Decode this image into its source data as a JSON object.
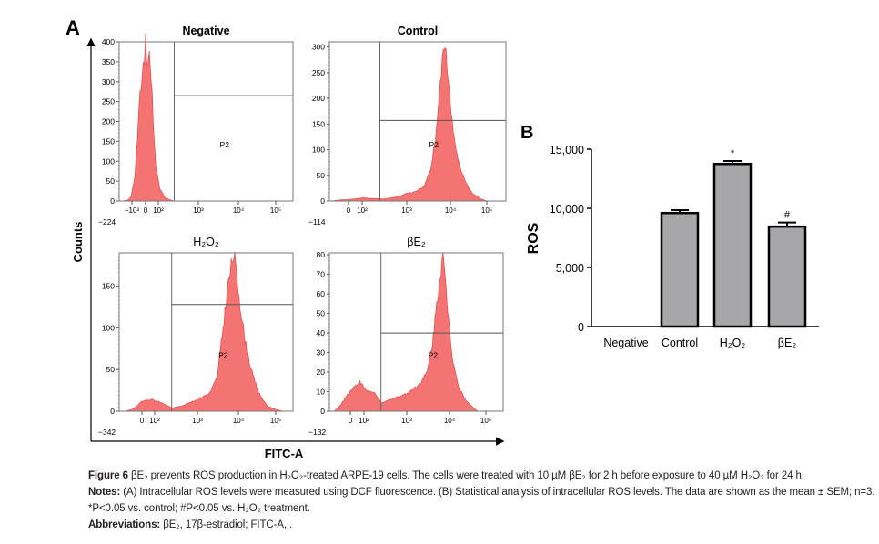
{
  "panel_a": {
    "label": "A",
    "y_axis_label": "Counts",
    "x_axis_label": "FITC-A",
    "gate_label": "P2"
  },
  "panel_b": {
    "label": "B"
  },
  "chart_data": [
    {
      "type": "area",
      "title": "Negative",
      "x_scale": "biexponential",
      "x_min_label": "−224",
      "x_ticks": [
        "−10²",
        "0",
        "10²",
        "10³",
        "10⁴",
        "10⁵"
      ],
      "x_tick_values": [
        -100,
        0,
        100,
        1000,
        10000,
        100000
      ],
      "ylim": [
        0,
        400
      ],
      "y_ticks": [
        0,
        50,
        100,
        150,
        200,
        250,
        300,
        350,
        400
      ],
      "gate": {
        "name": "P2",
        "fitc_threshold": 250,
        "count_marker": 265
      },
      "color": "#f25c5c",
      "points": [
        [
          -224,
          0
        ],
        [
          -150,
          2
        ],
        [
          -110,
          12
        ],
        [
          -80,
          60
        ],
        [
          -60,
          160
        ],
        [
          -40,
          290
        ],
        [
          -25,
          300
        ],
        [
          -10,
          360
        ],
        [
          0,
          400
        ],
        [
          15,
          340
        ],
        [
          30,
          370
        ],
        [
          45,
          310
        ],
        [
          60,
          200
        ],
        [
          80,
          90
        ],
        [
          110,
          30
        ],
        [
          150,
          8
        ],
        [
          220,
          1
        ],
        [
          300,
          0
        ]
      ]
    },
    {
      "type": "area",
      "title": "Control",
      "x_scale": "biexponential",
      "x_min_label": "−114",
      "x_ticks": [
        "0",
        "10²",
        "10³",
        "10⁴",
        "10⁵"
      ],
      "x_tick_values": [
        0,
        100,
        1000,
        10000,
        100000
      ],
      "ylim": [
        0,
        310
      ],
      "y_ticks": [
        0,
        50,
        100,
        150,
        200,
        250,
        300
      ],
      "gate": {
        "name": "P2",
        "fitc_threshold": 250,
        "count_marker": 157
      },
      "color": "#f25c5c",
      "points": [
        [
          -114,
          0
        ],
        [
          -60,
          2
        ],
        [
          0,
          3
        ],
        [
          100,
          6
        ],
        [
          300,
          4
        ],
        [
          600,
          8
        ],
        [
          1000,
          15
        ],
        [
          1600,
          18
        ],
        [
          2500,
          28
        ],
        [
          3500,
          60
        ],
        [
          4500,
          120
        ],
        [
          5500,
          200
        ],
        [
          6500,
          270
        ],
        [
          7200,
          310
        ],
        [
          8000,
          280
        ],
        [
          9500,
          220
        ],
        [
          12000,
          130
        ],
        [
          16000,
          80
        ],
        [
          25000,
          40
        ],
        [
          40000,
          15
        ],
        [
          70000,
          4
        ],
        [
          100000,
          0
        ]
      ]
    },
    {
      "type": "area",
      "title": "H₂O₂",
      "x_scale": "biexponential",
      "x_min_label": "−342",
      "x_ticks": [
        "0",
        "10²",
        "10³",
        "10⁴",
        "10⁵"
      ],
      "x_tick_values": [
        0,
        100,
        1000,
        10000,
        100000
      ],
      "ylim": [
        0,
        190
      ],
      "y_ticks": [
        0,
        50,
        100,
        150
      ],
      "gate": {
        "name": "P2",
        "fitc_threshold": 250,
        "count_marker": 128
      },
      "color": "#f25c5c",
      "points": [
        [
          -342,
          0
        ],
        [
          -200,
          2
        ],
        [
          -100,
          6
        ],
        [
          0,
          12
        ],
        [
          80,
          14
        ],
        [
          150,
          10
        ],
        [
          250,
          4
        ],
        [
          400,
          6
        ],
        [
          1000,
          14
        ],
        [
          2000,
          22
        ],
        [
          3000,
          40
        ],
        [
          4000,
          90
        ],
        [
          5500,
          150
        ],
        [
          7000,
          180
        ],
        [
          7800,
          190
        ],
        [
          9000,
          165
        ],
        [
          11000,
          130
        ],
        [
          15000,
          85
        ],
        [
          22000,
          50
        ],
        [
          35000,
          22
        ],
        [
          60000,
          6
        ],
        [
          100000,
          2
        ],
        [
          150000,
          0
        ]
      ]
    },
    {
      "type": "area",
      "title": "βE₂",
      "x_scale": "biexponential",
      "x_min_label": "−132",
      "x_ticks": [
        "0",
        "10²",
        "10³",
        "10⁴",
        "10⁵"
      ],
      "x_tick_values": [
        0,
        100,
        1000,
        10000,
        100000
      ],
      "ylim": [
        0,
        81
      ],
      "y_ticks": [
        0,
        10,
        20,
        30,
        40,
        50,
        60,
        70,
        80
      ],
      "gate": {
        "name": "P2",
        "fitc_threshold": 250,
        "count_marker": 40
      },
      "color": "#f25c5c",
      "points": [
        [
          -132,
          0
        ],
        [
          -80,
          3
        ],
        [
          -30,
          8
        ],
        [
          20,
          12
        ],
        [
          70,
          15
        ],
        [
          110,
          11
        ],
        [
          180,
          9
        ],
        [
          260,
          4
        ],
        [
          400,
          6
        ],
        [
          1000,
          9
        ],
        [
          2000,
          14
        ],
        [
          3000,
          20
        ],
        [
          4000,
          35
        ],
        [
          5000,
          55
        ],
        [
          6000,
          70
        ],
        [
          7000,
          80
        ],
        [
          8000,
          66
        ],
        [
          9500,
          48
        ],
        [
          12000,
          28
        ],
        [
          18000,
          12
        ],
        [
          30000,
          5
        ],
        [
          50000,
          1
        ],
        [
          60000,
          0
        ]
      ]
    },
    {
      "type": "bar",
      "categories": [
        "Negative",
        "Control",
        "H₂O₂",
        "βE₂"
      ],
      "values": [
        0,
        9600,
        13750,
        8450
      ],
      "errors": [
        0,
        250,
        250,
        350
      ],
      "annotations": [
        "",
        "",
        "*",
        "#"
      ],
      "ylabel": "ROS",
      "ylim": [
        0,
        15000
      ],
      "y_ticks": [
        "0",
        "5,000",
        "10,000",
        "15,000"
      ],
      "y_tick_values": [
        0,
        5000,
        10000,
        15000
      ],
      "bar_color": "#a7a7a9"
    }
  ],
  "caption": {
    "figure_label": "Figure 6",
    "figure_text": " βE₂ prevents ROS production in H₂O₂-treated ARPE-19 cells. The cells were treated with 10 µM βE₂ for 2 h before exposure to 40 µM H₂O₂ for 24 h.",
    "notes_label": "Notes:",
    "notes_text": " (A) Intracellular ROS levels were measured using DCF fluorescence. (B) Statistical analysis of intracellular ROS levels. The data are shown as the mean ± SEM; n=3.",
    "notes_line2": "*P<0.05 vs. control; #P<0.05 vs. H₂O₂ treatment.",
    "abbrev_label": "Abbreviations:",
    "abbrev_text": " βE₂, 17β-estradiol; FITC-A, ."
  }
}
